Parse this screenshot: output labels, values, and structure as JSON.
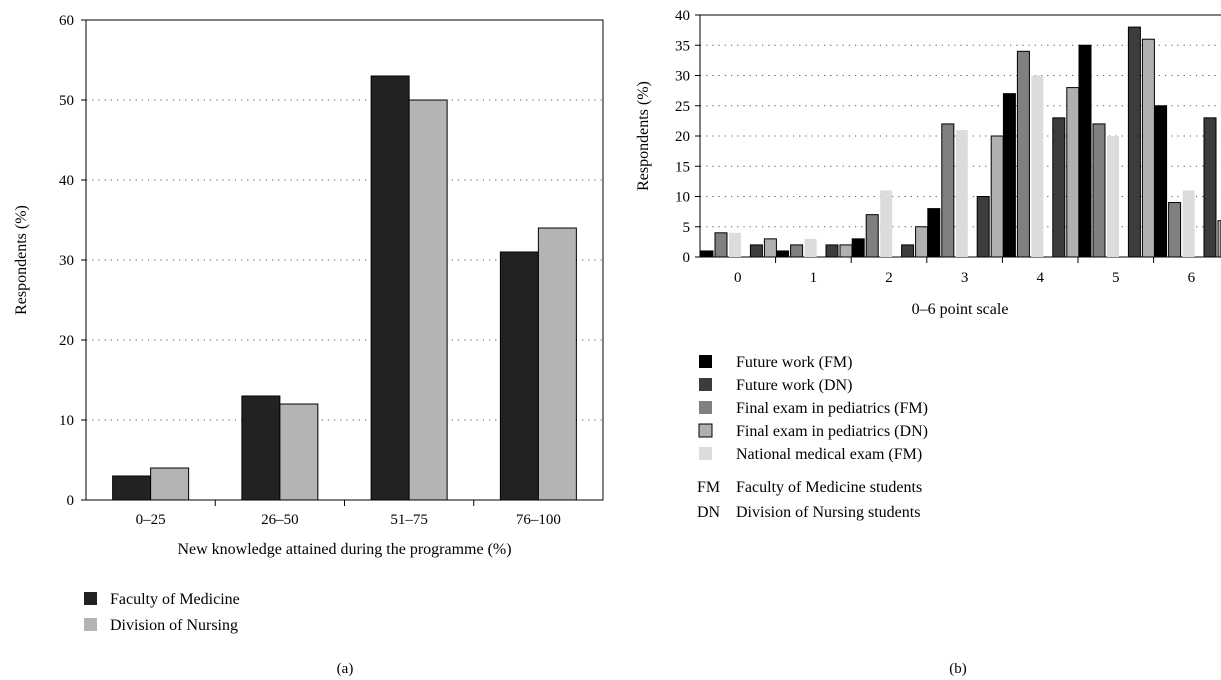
{
  "chart_data": [
    {
      "panel": "(a)",
      "type": "bar",
      "xlabel": "New knowledge attained during the programme (%)",
      "ylabel": "Respondents (%)",
      "ylim": [
        0,
        60
      ],
      "yticks": [
        0,
        10,
        20,
        30,
        40,
        50,
        60
      ],
      "grid": "horizontal dotted",
      "legend": "bottom-left",
      "categories": [
        "0–25",
        "26–50",
        "51–75",
        "76–100"
      ],
      "series": [
        {
          "name": "Faculty of Medicine",
          "color": "#222222",
          "values": [
            3,
            13,
            53,
            31
          ]
        },
        {
          "name": "Division of Nursing",
          "color": "#b4b4b4",
          "values": [
            4,
            12,
            50,
            34
          ]
        }
      ]
    },
    {
      "panel": "(b)",
      "type": "bar",
      "xlabel": "0–6 point scale",
      "ylabel": "Respondents (%)",
      "ylim": [
        0,
        40
      ],
      "yticks": [
        0,
        5,
        10,
        15,
        20,
        25,
        30,
        35,
        40
      ],
      "grid": "horizontal dotted",
      "legend": "bottom",
      "categories": [
        "0",
        "1",
        "2",
        "3",
        "4",
        "5",
        "6"
      ],
      "series": [
        {
          "name": "Future work (FM)",
          "color": "#000000",
          "values": [
            1,
            1,
            3,
            8,
            27,
            35,
            25
          ]
        },
        {
          "name": "Future work (DN)",
          "color": "#3c3c3c",
          "values": [
            2,
            2,
            2,
            10,
            23,
            38,
            23
          ]
        },
        {
          "name": "Final exam in pediatrics (FM)",
          "color": "#808080",
          "values": [
            4,
            2,
            7,
            22,
            34,
            22,
            9
          ]
        },
        {
          "name": "Final exam in pediatrics (DN)",
          "color": "#b0b0b0",
          "values": [
            3,
            2,
            5,
            20,
            28,
            36,
            6
          ]
        },
        {
          "name": "National medical exam (FM)",
          "color": "#dcdcdc",
          "values": [
            4,
            3,
            11,
            21,
            30,
            20,
            11
          ]
        }
      ],
      "series_order_in_group": [
        0,
        2,
        4,
        1,
        3
      ],
      "abbreviations": [
        {
          "abbr": "FM",
          "text": "Faculty of Medicine students"
        },
        {
          "abbr": "DN",
          "text": "Division of Nursing students"
        }
      ]
    }
  ]
}
